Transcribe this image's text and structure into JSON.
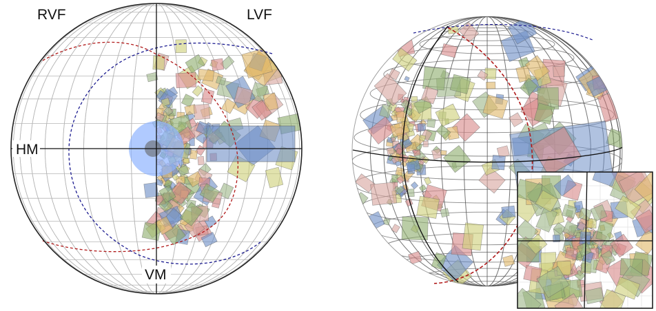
{
  "labels": {
    "rvf": "RVF",
    "lvf": "LVF",
    "hm": "HM",
    "vm": "VM"
  },
  "colors": {
    "background": "#ffffff",
    "grid": "#b5b5b5",
    "outline": "#222222",
    "axis": "#111111",
    "boundary_red": "#b01a1a",
    "boundary_blue": "#1a1a8f",
    "foveal_disc": "#8fb3ff",
    "foveal_center": "#666666",
    "patch_palette": [
      "#6f8fc7",
      "#d9a6a0",
      "#cfd07a",
      "#e0b86a",
      "#8fae6f",
      "#9fb88a",
      "#d88a8a"
    ]
  },
  "panels": [
    {
      "name": "flat-map",
      "projection": "orthographic-hemisphere"
    },
    {
      "name": "sphere-view",
      "projection": "rotated-sphere"
    },
    {
      "name": "inset-zoom",
      "projection": "cartesian-zoom"
    }
  ]
}
